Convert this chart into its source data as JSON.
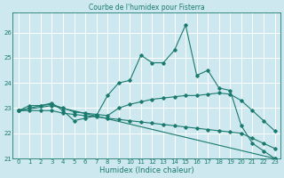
{
  "title": "Courbe de l'humidex pour Fisterra",
  "xlabel": "Humidex (Indice chaleur)",
  "bg_color": "#cde8ef",
  "grid_color": "#ffffff",
  "line_color": "#1a7a6e",
  "xlim": [
    -0.5,
    23.5
  ],
  "ylim": [
    21.0,
    26.8
  ],
  "yticks": [
    21,
    22,
    23,
    24,
    25,
    26
  ],
  "xticks": [
    0,
    1,
    2,
    3,
    4,
    5,
    6,
    7,
    8,
    9,
    10,
    11,
    12,
    13,
    14,
    15,
    16,
    17,
    18,
    19,
    20,
    21,
    22,
    23
  ],
  "series": [
    {
      "x": [
        0,
        1,
        2,
        3,
        4,
        5,
        6,
        7,
        8,
        9,
        10,
        11,
        12,
        13,
        14,
        15,
        16,
        17,
        18,
        19,
        20,
        21,
        22,
        23
      ],
      "y": [
        22.9,
        23.1,
        23.1,
        23.2,
        22.9,
        22.5,
        22.6,
        22.7,
        23.5,
        24.0,
        24.1,
        25.1,
        24.8,
        24.8,
        25.3,
        26.3,
        24.3,
        24.5,
        23.8,
        23.7,
        22.3,
        21.6,
        21.3,
        21.0
      ]
    },
    {
      "x": [
        0,
        1,
        2,
        3,
        4,
        5,
        6,
        7,
        8,
        9,
        10,
        11,
        12,
        13,
        14,
        15,
        16,
        17,
        18,
        19,
        20,
        21,
        22,
        23
      ],
      "y": [
        22.9,
        23.0,
        23.1,
        23.15,
        23.0,
        22.85,
        22.8,
        22.75,
        22.7,
        23.0,
        23.15,
        23.25,
        23.35,
        23.4,
        23.45,
        23.5,
        23.5,
        23.55,
        23.6,
        23.55,
        23.3,
        22.9,
        22.5,
        22.1
      ]
    },
    {
      "x": [
        0,
        1,
        2,
        3,
        4,
        5,
        6,
        7,
        8,
        9,
        10,
        11,
        12,
        13,
        14,
        15,
        16,
        17,
        18,
        19,
        20,
        21,
        22,
        23
      ],
      "y": [
        22.9,
        22.9,
        22.9,
        22.9,
        22.8,
        22.75,
        22.7,
        22.65,
        22.6,
        22.55,
        22.5,
        22.45,
        22.4,
        22.35,
        22.3,
        22.25,
        22.2,
        22.15,
        22.1,
        22.05,
        22.0,
        21.8,
        21.6,
        21.4
      ]
    },
    {
      "x": [
        0,
        3,
        23
      ],
      "y": [
        22.9,
        23.1,
        21.0
      ]
    }
  ]
}
